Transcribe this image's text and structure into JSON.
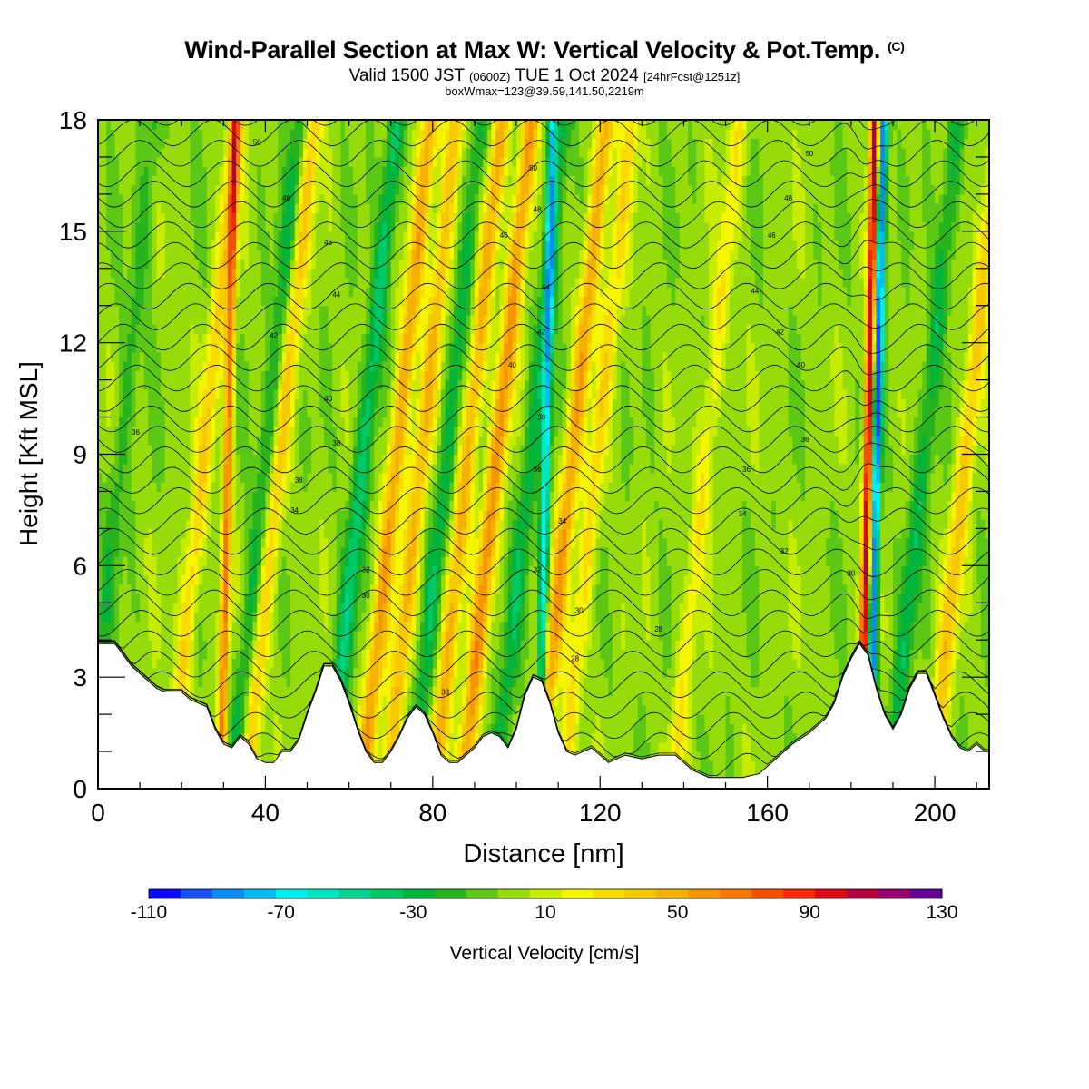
{
  "title": {
    "main": "Wind-Parallel Section at Max W: Vertical Velocity & Pot.Temp.",
    "mark": "(C)",
    "sub_part1": "Valid 1500 JST",
    "sub_part2": "(0600Z)",
    "sub_part3": "TUE 1 Oct 2024",
    "sub_part4": "[24hrFcst@1251z]",
    "box": "boxWmax=123@39.59,141.50,2219m"
  },
  "chart_data": {
    "type": "heatmap",
    "title": "Wind-Parallel Section at Max W: Vertical Velocity & Pot.Temp.",
    "xlabel": "Distance [nm]",
    "ylabel": "Height [Kft MSL]",
    "xlim": [
      0,
      213
    ],
    "ylim": [
      0,
      18
    ],
    "x_ticks": [
      0,
      40,
      80,
      120,
      160,
      200
    ],
    "y_ticks": [
      0,
      3,
      6,
      9,
      12,
      15,
      18
    ],
    "grid": false,
    "colorbar": {
      "label": "Vertical Velocity [cm/s]",
      "tick_labels": [
        "-110",
        "-70",
        "-30",
        "10",
        "50",
        "90",
        "130"
      ],
      "levels": [
        -110,
        -100,
        -90,
        -80,
        -70,
        -60,
        -50,
        -40,
        -30,
        -20,
        -10,
        0,
        10,
        20,
        30,
        40,
        50,
        60,
        70,
        80,
        90,
        100,
        110,
        120,
        130
      ],
      "colors": [
        "#0a0af5",
        "#1452f5",
        "#0a8cf0",
        "#00bef0",
        "#00f0f0",
        "#00e6c0",
        "#00d290",
        "#00c864",
        "#00b43c",
        "#28b41e",
        "#5ac814",
        "#96dc0a",
        "#c8ec00",
        "#f5f500",
        "#f8dc00",
        "#f5c800",
        "#f5b000",
        "#f59600",
        "#f57800",
        "#f55000",
        "#f52800",
        "#dc0a14",
        "#b4003c",
        "#96006e",
        "#640096"
      ]
    },
    "terrain_height_kft": [
      [
        0,
        3.9
      ],
      [
        4,
        3.9
      ],
      [
        6,
        3.6
      ],
      [
        8,
        3.3
      ],
      [
        10,
        3.1
      ],
      [
        12,
        2.9
      ],
      [
        14,
        2.7
      ],
      [
        16,
        2.6
      ],
      [
        20,
        2.6
      ],
      [
        22,
        2.4
      ],
      [
        24,
        2.3
      ],
      [
        26,
        2.2
      ],
      [
        28,
        1.6
      ],
      [
        30,
        1.2
      ],
      [
        32,
        1.1
      ],
      [
        34,
        1.4
      ],
      [
        36,
        1.2
      ],
      [
        38,
        0.8
      ],
      [
        40,
        0.7
      ],
      [
        42,
        0.7
      ],
      [
        44,
        1.0
      ],
      [
        46,
        1.0
      ],
      [
        48,
        1.3
      ],
      [
        50,
        2.0
      ],
      [
        52,
        2.6
      ],
      [
        54,
        3.3
      ],
      [
        56,
        3.3
      ],
      [
        58,
        2.9
      ],
      [
        60,
        2.3
      ],
      [
        62,
        1.6
      ],
      [
        64,
        1.0
      ],
      [
        66,
        0.7
      ],
      [
        68,
        0.7
      ],
      [
        70,
        1.0
      ],
      [
        72,
        1.4
      ],
      [
        74,
        1.9
      ],
      [
        76,
        2.2
      ],
      [
        78,
        2.0
      ],
      [
        80,
        1.5
      ],
      [
        82,
        0.9
      ],
      [
        84,
        0.7
      ],
      [
        86,
        0.7
      ],
      [
        88,
        0.9
      ],
      [
        90,
        1.1
      ],
      [
        92,
        1.4
      ],
      [
        94,
        1.5
      ],
      [
        96,
        1.4
      ],
      [
        98,
        1.1
      ],
      [
        100,
        1.6
      ],
      [
        102,
        2.5
      ],
      [
        104,
        3.0
      ],
      [
        106,
        2.9
      ],
      [
        108,
        2.3
      ],
      [
        110,
        1.5
      ],
      [
        112,
        1.0
      ],
      [
        114,
        0.9
      ],
      [
        116,
        1.0
      ],
      [
        118,
        1.1
      ],
      [
        120,
        0.9
      ],
      [
        122,
        0.7
      ],
      [
        124,
        0.8
      ],
      [
        126,
        0.9
      ],
      [
        130,
        0.8
      ],
      [
        134,
        0.9
      ],
      [
        138,
        0.9
      ],
      [
        142,
        0.5
      ],
      [
        146,
        0.3
      ],
      [
        150,
        0.3
      ],
      [
        154,
        0.3
      ],
      [
        158,
        0.4
      ],
      [
        162,
        0.8
      ],
      [
        166,
        1.2
      ],
      [
        170,
        1.5
      ],
      [
        174,
        1.9
      ],
      [
        176,
        2.3
      ],
      [
        178,
        3.0
      ],
      [
        180,
        3.5
      ],
      [
        182,
        3.9
      ],
      [
        184,
        3.6
      ],
      [
        186,
        2.7
      ],
      [
        188,
        2.0
      ],
      [
        190,
        1.6
      ],
      [
        192,
        2.0
      ],
      [
        194,
        2.7
      ],
      [
        196,
        3.1
      ],
      [
        198,
        3.1
      ],
      [
        200,
        2.5
      ],
      [
        202,
        1.9
      ],
      [
        204,
        1.4
      ],
      [
        206,
        1.1
      ],
      [
        208,
        1.0
      ],
      [
        210,
        1.2
      ],
      [
        212,
        1.0
      ],
      [
        213,
        1.0
      ]
    ],
    "updraft_columns": [
      {
        "x": 30,
        "w": 70
      },
      {
        "x": 38,
        "w": 40
      },
      {
        "x": 66,
        "w": 55
      },
      {
        "x": 72,
        "w": 45
      },
      {
        "x": 83,
        "w": 50
      },
      {
        "x": 90,
        "w": 60
      },
      {
        "x": 108,
        "w": 55
      },
      {
        "x": 114,
        "w": 30
      },
      {
        "x": 183,
        "w": 110
      },
      {
        "x": 202,
        "w": 40
      },
      {
        "x": 20,
        "w": 35
      },
      {
        "x": 140,
        "w": 25
      }
    ],
    "downdraft_columns": [
      {
        "x": 35,
        "w": -30
      },
      {
        "x": 58,
        "w": -40
      },
      {
        "x": 78,
        "w": -30
      },
      {
        "x": 98,
        "w": -30
      },
      {
        "x": 106,
        "w": -70
      },
      {
        "x": 185,
        "w": -100
      },
      {
        "x": 192,
        "w": -30
      },
      {
        "x": 0,
        "w": -20
      }
    ],
    "theta_contour_labels": [
      {
        "x": 9,
        "y": 9.6,
        "label": "36"
      },
      {
        "x": 48,
        "y": 8.3,
        "label": "38"
      },
      {
        "x": 47,
        "y": 7.5,
        "label": "34"
      },
      {
        "x": 64,
        "y": 5.9,
        "label": "32"
      },
      {
        "x": 64,
        "y": 5.2,
        "label": "30"
      },
      {
        "x": 83,
        "y": 2.6,
        "label": "38"
      },
      {
        "x": 115,
        "y": 4.8,
        "label": "30"
      },
      {
        "x": 114,
        "y": 3.5,
        "label": "28"
      },
      {
        "x": 134,
        "y": 4.3,
        "label": "28"
      },
      {
        "x": 164,
        "y": 6.4,
        "label": "32"
      },
      {
        "x": 169,
        "y": 9.4,
        "label": "36"
      },
      {
        "x": 154,
        "y": 7.4,
        "label": "34"
      },
      {
        "x": 155,
        "y": 8.6,
        "label": "36"
      },
      {
        "x": 180,
        "y": 5.8,
        "label": "30"
      },
      {
        "x": 105,
        "y": 5.9,
        "label": "32"
      },
      {
        "x": 105,
        "y": 8.6,
        "label": "36"
      },
      {
        "x": 106,
        "y": 10.0,
        "label": "38"
      },
      {
        "x": 111,
        "y": 7.2,
        "label": "34"
      },
      {
        "x": 55,
        "y": 10.5,
        "label": "40"
      },
      {
        "x": 57,
        "y": 9.3,
        "label": "38"
      },
      {
        "x": 42,
        "y": 12.2,
        "label": "42"
      },
      {
        "x": 57,
        "y": 13.3,
        "label": "44"
      },
      {
        "x": 55,
        "y": 14.7,
        "label": "46"
      },
      {
        "x": 45,
        "y": 15.9,
        "label": "48"
      },
      {
        "x": 38,
        "y": 17.4,
        "label": "50"
      },
      {
        "x": 99,
        "y": 11.4,
        "label": "40"
      },
      {
        "x": 106,
        "y": 12.3,
        "label": "42"
      },
      {
        "x": 107,
        "y": 13.5,
        "label": "44"
      },
      {
        "x": 97,
        "y": 14.9,
        "label": "46"
      },
      {
        "x": 105,
        "y": 15.6,
        "label": "48"
      },
      {
        "x": 104,
        "y": 16.7,
        "label": "50"
      },
      {
        "x": 168,
        "y": 11.4,
        "label": "40"
      },
      {
        "x": 163,
        "y": 12.3,
        "label": "42"
      },
      {
        "x": 157,
        "y": 13.4,
        "label": "44"
      },
      {
        "x": 161,
        "y": 14.9,
        "label": "46"
      },
      {
        "x": 165,
        "y": 15.9,
        "label": "48"
      },
      {
        "x": 170,
        "y": 17.1,
        "label": "50"
      }
    ]
  }
}
